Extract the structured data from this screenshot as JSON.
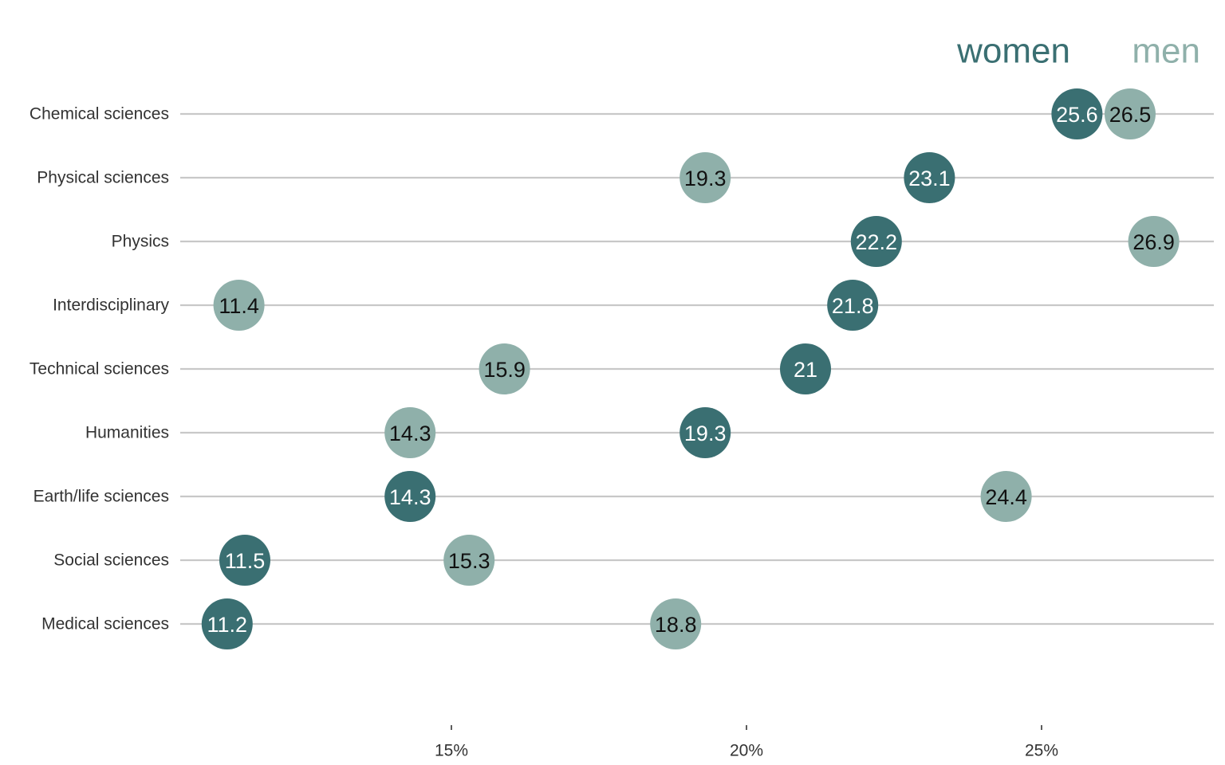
{
  "chart_data": {
    "type": "scatter",
    "title": "",
    "xlabel": "",
    "ylabel": "",
    "x_unit": "%",
    "xlim": [
      10.0,
      27.8
    ],
    "xticks": [
      15,
      20,
      25
    ],
    "xtick_labels": [
      "15%",
      "20%",
      "25%"
    ],
    "grid": "horizontal lines per category",
    "legend_placement": "top-right",
    "categories": [
      "Chemical sciences",
      "Physical sciences",
      "Physics",
      "Interdisciplinary",
      "Technical sciences",
      "Humanities",
      "Earth/life sciences",
      "Social sciences",
      "Medical sciences"
    ],
    "series": [
      {
        "name": "women",
        "color": "#3a6f72",
        "label_color": "#ffffff",
        "values": [
          25.6,
          23.1,
          22.2,
          21.8,
          21,
          19.3,
          14.3,
          11.5,
          11.2
        ]
      },
      {
        "name": "men",
        "color": "#8fb0aa",
        "label_color": "#111111",
        "values": [
          26.5,
          19.3,
          26.9,
          11.4,
          15.9,
          14.3,
          24.4,
          15.3,
          18.8
        ]
      }
    ]
  }
}
